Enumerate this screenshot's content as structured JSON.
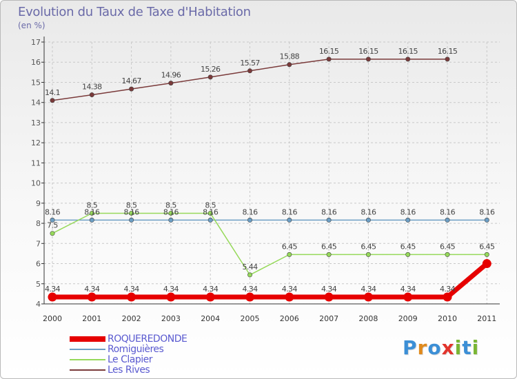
{
  "header": {
    "title": "Evolution du Taux de Taxe d'Habitation",
    "unit": "(en %)"
  },
  "brand": {
    "letters": [
      {
        "char": "P",
        "color": "#3c8fd6"
      },
      {
        "char": "r",
        "color": "#e08a1c"
      },
      {
        "char": "o",
        "color": "#3c8fd6"
      },
      {
        "char": "x",
        "color": "#e2342c"
      },
      {
        "char": "i",
        "color": "#7ab634"
      },
      {
        "char": "t",
        "color": "#3c8fd6"
      },
      {
        "char": "i",
        "color": "#7ab634"
      }
    ]
  },
  "chart_data": {
    "type": "line",
    "title": "Evolution du Taux de Taxe d'Habitation",
    "ylabel": "(en %)",
    "xlabel": "",
    "ylim": [
      4,
      17
    ],
    "yticks": [
      4,
      5,
      6,
      7,
      8,
      9,
      10,
      11,
      12,
      13,
      14,
      15,
      16,
      17
    ],
    "x": [
      "2000",
      "2001",
      "2002",
      "2003",
      "2004",
      "2005",
      "2006",
      "2007",
      "2008",
      "2009",
      "2010",
      "2011"
    ],
    "grid": true,
    "legend_position": "bottom-left",
    "series": [
      {
        "name": "ROQUEREDONDE",
        "color": "#e60000",
        "values": [
          4.34,
          4.34,
          4.34,
          4.34,
          4.34,
          4.34,
          4.34,
          4.34,
          4.34,
          4.34,
          4.34,
          6.0
        ],
        "labels": [
          "4.34",
          "4.34",
          "4.34",
          "4.34",
          "4.34",
          "4.34",
          "4.34",
          "4.34",
          "4.34",
          "4.34",
          "4.34",
          ""
        ]
      },
      {
        "name": "Romiguières",
        "color": "#6c9ec4",
        "values": [
          8.16,
          8.16,
          8.16,
          8.16,
          8.16,
          8.16,
          8.16,
          8.16,
          8.16,
          8.16,
          8.16,
          8.16
        ],
        "labels": [
          "8.16",
          "8.16",
          "8.16",
          "8.16",
          "8.16",
          "8.16",
          "8.16",
          "8.16",
          "8.16",
          "8.16",
          "8.16",
          "8.16"
        ]
      },
      {
        "name": "Le Clapier",
        "color": "#96d95a",
        "values": [
          7.5,
          8.5,
          8.5,
          8.5,
          8.5,
          5.44,
          6.45,
          6.45,
          6.45,
          6.45,
          6.45,
          6.45
        ],
        "labels": [
          "7.5",
          "8.5",
          "8.5",
          "8.5",
          "8.5",
          "5.44",
          "6.45",
          "6.45",
          "6.45",
          "6.45",
          "6.45",
          "6.45"
        ]
      },
      {
        "name": "Les Rives",
        "color": "#7a3a3a",
        "values": [
          14.1,
          14.38,
          14.67,
          14.96,
          15.26,
          15.57,
          15.88,
          16.15,
          16.15,
          16.15,
          16.15,
          null
        ],
        "labels": [
          "14.1",
          "14.38",
          "14.67",
          "14.96",
          "15.26",
          "15.57",
          "15.88",
          "16.15",
          "16.15",
          "16.15",
          "16.15",
          ""
        ]
      }
    ]
  }
}
